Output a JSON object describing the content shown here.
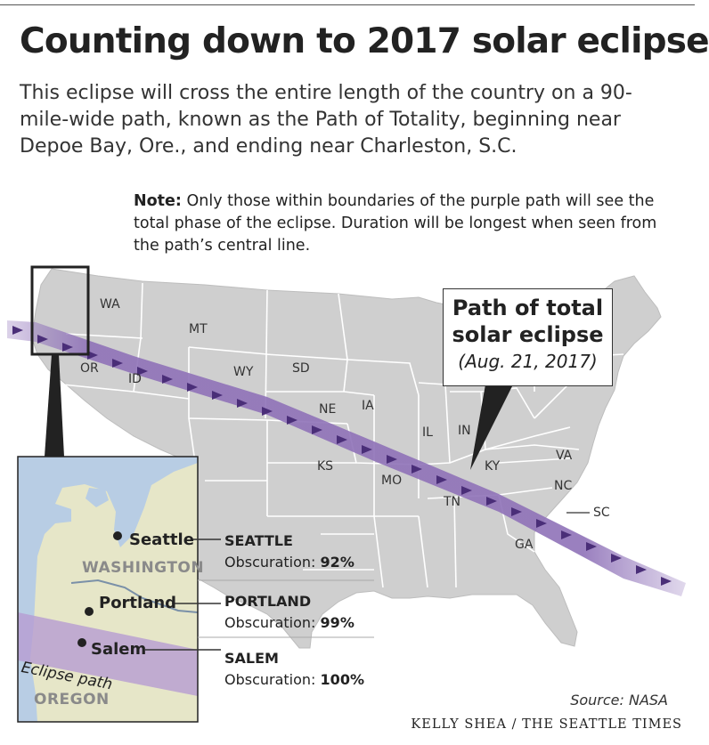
{
  "header": {
    "title": "Counting down to 2017 solar eclipse",
    "subtitle": "This eclipse will cross the entire length of the country on a 90-mile-wide path, known as the Path of Totality, beginning near Depoe Bay, Ore., and ending near Charleston, S.C."
  },
  "note": {
    "label": "Note:",
    "text": "Only those within boundaries of the purple path will see the total phase of the eclipse. Duration will be longest when seen from the path’s central line."
  },
  "callout": {
    "line1": "Path of total",
    "line2": "solar eclipse",
    "line3": "(Aug. 21, 2017)"
  },
  "states": [
    "WA",
    "MT",
    "OR",
    "ID",
    "WY",
    "SD",
    "NE",
    "IA",
    "IL",
    "IN",
    "KS",
    "MO",
    "KY",
    "VA",
    "NC",
    "TN",
    "SC",
    "GA"
  ],
  "inset": {
    "cities": [
      "Seattle",
      "Portland",
      "Salem"
    ],
    "regions": [
      "WASHINGTON",
      "OREGON"
    ],
    "path_label": "Eclipse path"
  },
  "obscuration": [
    {
      "city": "SEATTLE",
      "label": "Obscuration:",
      "value": "92%"
    },
    {
      "city": "PORTLAND",
      "label": "Obscuration:",
      "value": "99%"
    },
    {
      "city": "SALEM",
      "label": "Obscuration:",
      "value": "100%"
    }
  ],
  "footer": {
    "source": "Source: NASA",
    "credit": "KELLY SHEA / THE SEATTLE TIMES"
  },
  "colors": {
    "land": "#cfcfcf",
    "state_border": "#ffffff",
    "path": "#9a7fc0",
    "inset_water": "#b8cde4",
    "inset_land": "#e6e6c8",
    "inset_path": "#b79cd2"
  }
}
